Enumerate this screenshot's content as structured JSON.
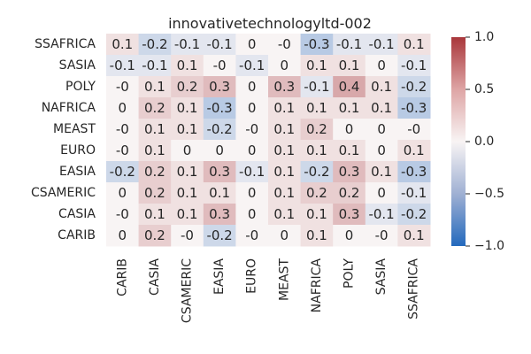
{
  "chart_data": {
    "type": "heatmap",
    "title": "innovativetechnologyltd-002",
    "rows": [
      "SSAFRICA",
      "SASIA",
      "POLY",
      "NAFRICA",
      "MEAST",
      "EURO",
      "EASIA",
      "CSAMERIC",
      "CASIA",
      "CARIB"
    ],
    "columns": [
      "CARIB",
      "CASIA",
      "CSAMERIC",
      "EASIA",
      "EURO",
      "MEAST",
      "NAFRICA",
      "POLY",
      "SASIA",
      "SSAFRICA"
    ],
    "values": [
      [
        0.1,
        -0.2,
        -0.1,
        -0.1,
        0,
        0,
        -0.3,
        -0.1,
        -0.1,
        0.1
      ],
      [
        -0.1,
        -0.1,
        0.1,
        0,
        -0.1,
        0,
        0.1,
        0.1,
        0,
        -0.1
      ],
      [
        0,
        0.1,
        0.2,
        0.3,
        0,
        0.3,
        -0.1,
        0.4,
        0.1,
        -0.2
      ],
      [
        0,
        0.2,
        0.1,
        -0.3,
        0,
        0.1,
        0.1,
        0.1,
        0.1,
        -0.3
      ],
      [
        0,
        0.1,
        0.1,
        -0.2,
        0,
        0.1,
        0.2,
        0,
        0,
        0
      ],
      [
        0,
        0.1,
        0,
        0,
        0,
        0.1,
        0.1,
        0.1,
        0,
        0.1
      ],
      [
        -0.2,
        0.2,
        0.1,
        0.3,
        -0.1,
        0.1,
        -0.2,
        0.3,
        0.1,
        -0.3
      ],
      [
        0,
        0.2,
        0.1,
        0.1,
        0,
        0.1,
        0.2,
        0.2,
        0,
        -0.1
      ],
      [
        0,
        0.1,
        0.1,
        0.3,
        0,
        0.1,
        0.1,
        0.3,
        -0.1,
        -0.2
      ],
      [
        0,
        0.2,
        0,
        -0.2,
        0,
        0,
        0.1,
        0,
        0,
        0.1
      ]
    ],
    "labels": [
      [
        "0.1",
        "-0.2",
        "-0.1",
        "-0.1",
        "0",
        "-0",
        "-0.3",
        "-0.1",
        "-0.1",
        "0.1"
      ],
      [
        "-0.1",
        "-0.1",
        "0.1",
        "-0",
        "-0.1",
        "0",
        "0.1",
        "0.1",
        "0",
        "-0.1"
      ],
      [
        "-0",
        "0.1",
        "0.2",
        "0.3",
        "0",
        "0.3",
        "-0.1",
        "0.4",
        "0.1",
        "-0.2"
      ],
      [
        "0",
        "0.2",
        "0.1",
        "-0.3",
        "0",
        "0.1",
        "0.1",
        "0.1",
        "0.1",
        "-0.3"
      ],
      [
        "-0",
        "0.1",
        "0.1",
        "-0.2",
        "-0",
        "0.1",
        "0.2",
        "0",
        "0",
        "-0"
      ],
      [
        "-0",
        "0.1",
        "0",
        "0",
        "0",
        "0.1",
        "0.1",
        "0.1",
        "0",
        "0.1"
      ],
      [
        "-0.2",
        "0.2",
        "0.1",
        "0.3",
        "-0.1",
        "0.1",
        "-0.2",
        "0.3",
        "0.1",
        "-0.3"
      ],
      [
        "0",
        "0.2",
        "0.1",
        "0.1",
        "0",
        "0.1",
        "0.2",
        "0.2",
        "0",
        "-0.1"
      ],
      [
        "-0",
        "0.1",
        "0.1",
        "0.3",
        "0",
        "0.1",
        "0.1",
        "0.3",
        "-0.1",
        "-0.2"
      ],
      [
        "0",
        "0.2",
        "-0",
        "-0.2",
        "-0",
        "0",
        "0.1",
        "0",
        "-0",
        "0.1"
      ]
    ],
    "colorbar": {
      "range": [
        -1.0,
        1.0
      ],
      "ticks": [
        -1.0,
        -0.5,
        0.0,
        0.5,
        1.0
      ],
      "tick_labels": [
        "−1.0",
        "−0.5",
        "0.0",
        "0.5",
        "1.0"
      ],
      "colormap": "vlag",
      "colors": {
        "low": "#2369bd",
        "mid": "#f8f4f4",
        "high": "#a9373b"
      }
    },
    "grid": false,
    "legend": "colorbar-right"
  }
}
